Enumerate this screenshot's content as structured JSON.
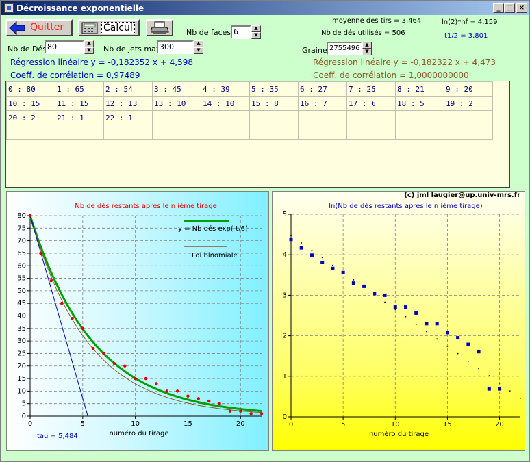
{
  "window": {
    "title": "Décroissance exponentielle"
  },
  "toolbar": {
    "quit_label": "Quitter",
    "calc_label": "Calcul"
  },
  "controls": {
    "nb_des_label": "Nb de Dés",
    "nb_des_value": "80",
    "nb_jets_label": "Nb de jets max",
    "nb_jets_value": "300",
    "nb_faces_label": "Nb de faces",
    "nb_faces_value": "6",
    "graine_label": "Graine",
    "graine_value": "2755496"
  },
  "stats": {
    "moyenne": "moyenne des tirs = 3,464",
    "nb_utilises": "Nb de dés utilisés = 506",
    "ln2nf": "ln(2)*nf = 4,159",
    "t_half": "t1/2 = 3,801"
  },
  "regression": {
    "left_line": "Régression linéaire y = -0,182352 x + 4,598",
    "left_corr": "Coeff. de corrélation = 0,97489",
    "right_line": "Régression linéaire y = -0,182322 x + 4,473",
    "right_corr": "Coeff. de corrélation = 1,0000000000"
  },
  "table": {
    "rows": [
      [
        "0 : 80",
        "1 : 65",
        "2 : 54",
        "3 : 45",
        "4 : 39",
        "5 : 35",
        "6 : 27",
        "7 : 25",
        "8 : 21",
        "9 : 20"
      ],
      [
        "10 : 15",
        "11 : 15",
        "12 : 13",
        "13 : 10",
        "14 : 10",
        "15 : 8",
        "16 : 7",
        "17 : 6",
        "18 : 5",
        "19 : 2"
      ],
      [
        "20 : 2",
        "21 : 1",
        "22 : 1",
        "",
        "",
        "",
        "",
        "",
        "",
        ""
      ],
      [
        "",
        "",
        "",
        "",
        "",
        "",
        "",
        "",
        "",
        ""
      ]
    ]
  },
  "copyright": "(c) jml  laugier@up.univ-mrs.fr",
  "colors": {
    "accent_blue": "#0000c0",
    "brown": "#8b5a2b",
    "exp_green": "#00a000",
    "point_red": "#e00000"
  },
  "chart_data": [
    {
      "type": "line",
      "title": "Nb de dés restants après le n ième tirage",
      "xlabel": "numéro du tirage",
      "ylabel": "",
      "xlim": [
        0,
        22
      ],
      "ylim": [
        0,
        80
      ],
      "xticks": [
        0,
        5,
        10,
        15,
        20
      ],
      "yticks": [
        0,
        5,
        10,
        15,
        20,
        25,
        30,
        35,
        40,
        45,
        50,
        55,
        60,
        65,
        70,
        75,
        80
      ],
      "grid": true,
      "legend_position": "top-right",
      "annotation": "tau = 5,484",
      "series": [
        {
          "name": "y = Nb dés exp(-t/6)",
          "style": "line",
          "color": "#00a000"
        },
        {
          "name": "Loi binomiale",
          "style": "line",
          "color": "#8b5a2b"
        },
        {
          "style": "points",
          "color": "#e00000",
          "x": [
            0,
            1,
            2,
            3,
            4,
            5,
            6,
            7,
            8,
            9,
            10,
            11,
            12,
            13,
            14,
            15,
            16,
            17,
            18,
            19,
            20,
            21,
            22
          ],
          "y": [
            80,
            65,
            54,
            45,
            39,
            35,
            27,
            25,
            21,
            20,
            15,
            15,
            13,
            10,
            10,
            8,
            7,
            6,
            5,
            2,
            2,
            1,
            1
          ]
        },
        {
          "style": "tangent",
          "color": "#0000c0",
          "x": [
            0,
            5.484
          ],
          "y": [
            80,
            0
          ]
        }
      ]
    },
    {
      "type": "scatter",
      "title": "ln(Nb de dés restants après le n ième tirage)",
      "xlabel": "numéro du tirage",
      "ylabel": "",
      "xlim": [
        0,
        22
      ],
      "ylim": [
        0,
        5
      ],
      "xticks": [
        0,
        5,
        10,
        15,
        20
      ],
      "yticks": [
        0,
        1,
        2,
        3,
        4,
        5
      ],
      "grid": true,
      "series": [
        {
          "style": "squares",
          "color": "#0000c0",
          "x": [
            0,
            1,
            2,
            3,
            4,
            5,
            6,
            7,
            8,
            9,
            10,
            11,
            12,
            13,
            14,
            15,
            16,
            17,
            18,
            19,
            20
          ],
          "y": [
            4.38,
            4.17,
            3.99,
            3.81,
            3.66,
            3.56,
            3.3,
            3.22,
            3.04,
            3.0,
            2.71,
            2.71,
            2.56,
            2.3,
            2.3,
            2.08,
            1.95,
            1.79,
            1.61,
            0.69,
            0.69
          ]
        },
        {
          "style": "dots",
          "color": "#000000",
          "x": [
            0,
            1,
            2,
            3,
            4,
            5,
            6,
            7,
            8,
            9,
            10,
            11,
            12,
            13,
            14,
            15,
            16,
            17,
            18,
            19,
            20,
            21,
            22
          ],
          "y": [
            4.47,
            4.29,
            4.11,
            3.93,
            3.74,
            3.56,
            3.38,
            3.2,
            3.01,
            2.83,
            2.65,
            2.47,
            2.28,
            2.1,
            1.92,
            1.74,
            1.56,
            1.37,
            1.19,
            1.01,
            0.83,
            0.64,
            0.46
          ]
        }
      ]
    }
  ]
}
